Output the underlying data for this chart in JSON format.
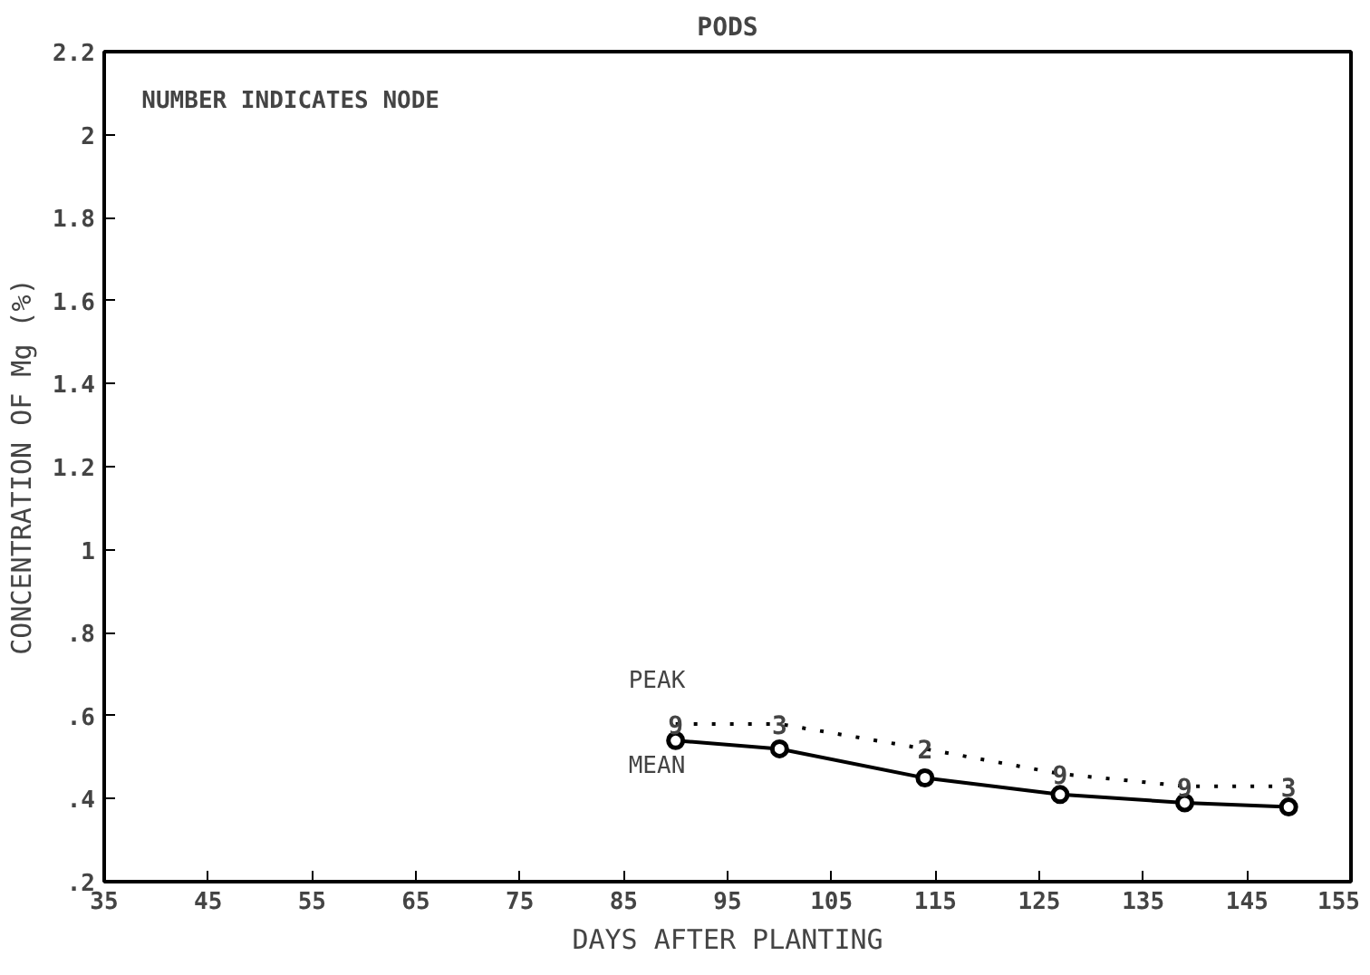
{
  "chart_data": {
    "type": "line",
    "title": "PODS",
    "xlabel": "DAYS AFTER PLANTING",
    "ylabel": "CONCENTRATION OF Mg (%)",
    "annotations": [
      "NUMBER INDICATES NODE",
      {
        "text": "9",
        "x": 90,
        "y": 0.58
      },
      {
        "text": "3",
        "x": 100,
        "y": 0.58
      },
      {
        "text": "2",
        "x": 114,
        "y": 0.52
      },
      {
        "text": "9",
        "x": 127,
        "y": 0.46
      },
      {
        "text": "9",
        "x": 139,
        "y": 0.43
      },
      {
        "text": "3",
        "x": 149,
        "y": 0.43
      }
    ],
    "x": [
      90,
      100,
      114,
      127,
      139,
      149
    ],
    "series": [
      {
        "name": "PEAK",
        "color": "#000000",
        "values": [
          0.58,
          0.58,
          0.52,
          0.46,
          0.43,
          0.43
        ],
        "line_style": "dotted"
      },
      {
        "name": "MEAN",
        "color": "#000000",
        "values": [
          0.54,
          0.52,
          0.45,
          0.41,
          0.39,
          0.38
        ],
        "line_style": "solid",
        "marker": "circle"
      }
    ],
    "xlim": [
      35,
      155
    ],
    "xticks": [
      35,
      45,
      55,
      65,
      75,
      85,
      95,
      105,
      115,
      125,
      135,
      145,
      155
    ],
    "ylim": [
      0.2,
      2.2
    ],
    "yticks": [
      {
        "value": 0.2,
        "label": ".2"
      },
      {
        "value": 0.4,
        "label": ".4"
      },
      {
        "value": 0.6,
        "label": ".6"
      },
      {
        "value": 0.8,
        "label": ".8"
      },
      1,
      1.2,
      1.4,
      1.6,
      1.8,
      2,
      2.2
    ],
    "grid": false
  }
}
